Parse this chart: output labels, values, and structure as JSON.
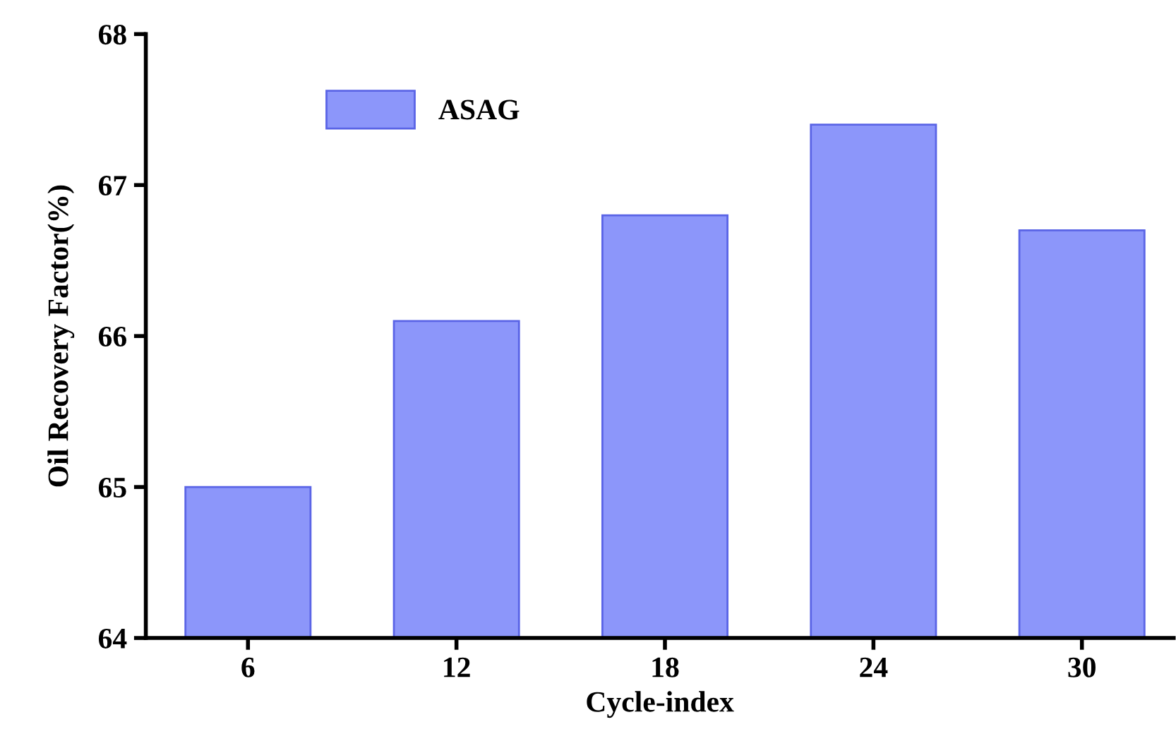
{
  "chart_data": {
    "type": "bar",
    "xlabel": "Cycle-index",
    "ylabel": "Oil Recovery Factor(%)",
    "categories": [
      "6",
      "12",
      "18",
      "24",
      "30"
    ],
    "series": [
      {
        "name": "ASAG",
        "color": "#8c96fa",
        "values": [
          65.0,
          66.1,
          66.8,
          67.4,
          66.7
        ]
      }
    ],
    "ylim": [
      64,
      68
    ],
    "yticks": [
      64,
      65,
      66,
      67,
      68
    ],
    "grid": false,
    "legend": "top left"
  }
}
